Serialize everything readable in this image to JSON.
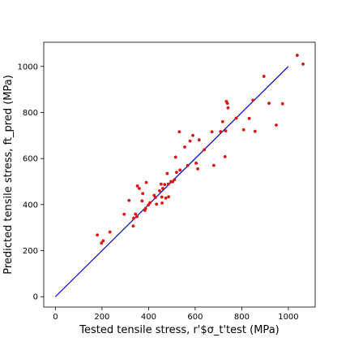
{
  "chart_data": {
    "type": "scatter",
    "title": "",
    "xlabel": "Tested tensile stress, r'$σ_t'test (MPa)",
    "ylabel": "Predicted tensile stress, ft_pred (MPa)",
    "xlim": [
      -50,
      1115
    ],
    "ylim": [
      -45,
      1105
    ],
    "xticks": [
      0,
      200,
      400,
      600,
      800,
      1000
    ],
    "yticks": [
      0,
      200,
      400,
      600,
      800,
      1000
    ],
    "grid": false,
    "colors": {
      "points": "#dd1111",
      "reference_line": "#0000cc",
      "axes": "#000000"
    },
    "series": [
      {
        "kind": "reference-line",
        "x": [
          0,
          1000
        ],
        "y": [
          0,
          1000
        ]
      },
      {
        "kind": "points",
        "x": [
          180,
          198,
          205,
          234,
          295,
          316,
          334,
          336,
          344,
          350,
          352,
          360,
          372,
          375,
          384,
          387,
          390,
          399,
          406,
          424,
          429,
          434,
          447,
          454,
          457,
          458,
          461,
          469,
          474,
          480,
          485,
          486,
          496,
          503,
          511,
          516,
          520,
          532,
          535,
          555,
          568,
          578,
          590,
          604,
          611,
          617,
          639,
          672,
          680,
          709,
          718,
          728,
          731,
          734,
          738,
          741,
          776,
          808,
          832,
          848,
          857,
          895,
          917,
          948,
          975,
          1038,
          1063
        ],
        "y": [
          268,
          233,
          243,
          281,
          358,
          418,
          307,
          341,
          359,
          348,
          481,
          470,
          416,
          448,
          375,
          383,
          496,
          398,
          408,
          440,
          431,
          402,
          460,
          489,
          433,
          407,
          470,
          487,
          428,
          535,
          489,
          434,
          500,
          499,
          508,
          606,
          540,
          716,
          550,
          650,
          570,
          676,
          700,
          580,
          555,
          681,
          638,
          716,
          570,
          717,
          760,
          608,
          720,
          848,
          840,
          820,
          775,
          725,
          774,
          853,
          718,
          957,
          840,
          745,
          838,
          1048,
          1010
        ]
      }
    ]
  }
}
